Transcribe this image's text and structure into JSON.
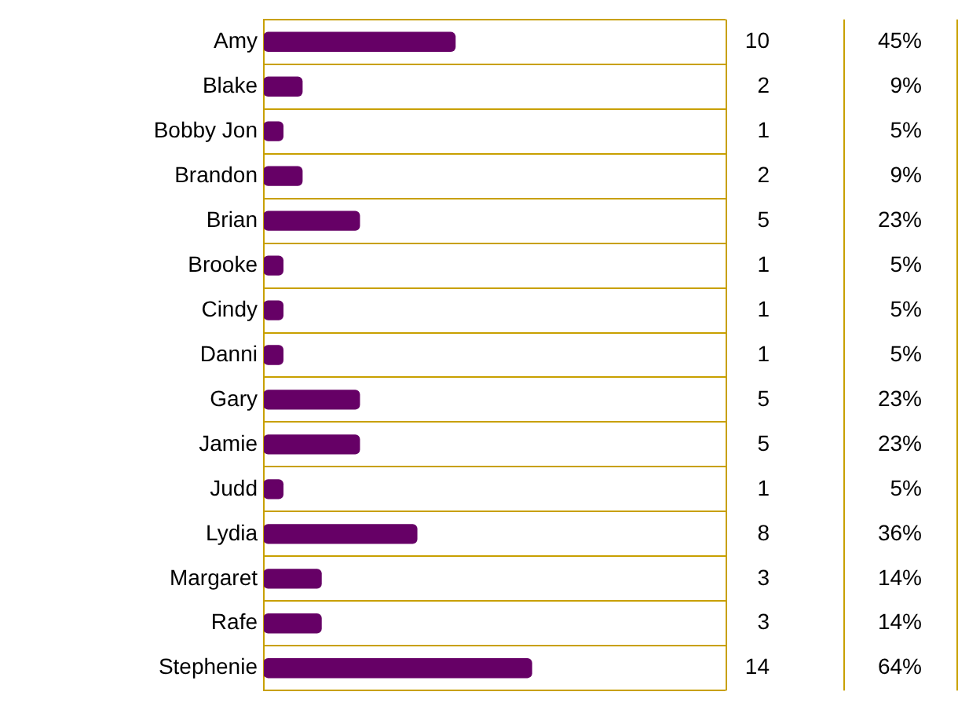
{
  "chart_data": {
    "type": "bar",
    "orientation": "horizontal",
    "categories": [
      "Amy",
      "Blake",
      "Bobby Jon",
      "Brandon",
      "Brian",
      "Brooke",
      "Cindy",
      "Danni",
      "Gary",
      "Jamie",
      "Judd",
      "Lydia",
      "Margaret",
      "Rafe",
      "Stephenie"
    ],
    "values": [
      10,
      2,
      1,
      2,
      5,
      1,
      1,
      1,
      5,
      5,
      1,
      8,
      3,
      3,
      14
    ],
    "color": "#660066",
    "data_labels": true,
    "annotations": [
      "45%",
      "9%",
      "5%",
      "9%",
      "23%",
      "5%",
      "5%",
      "5%",
      "23%",
      "23%",
      "5%",
      "36%",
      "14%",
      "14%",
      "64%"
    ],
    "grid": "y",
    "legend": false
  }
}
